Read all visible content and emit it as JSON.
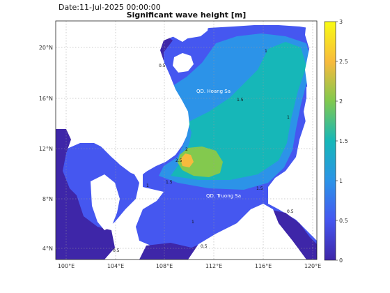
{
  "date_label": "Date:11-Jul-2025 00:00:00",
  "title": "Significant wave height [m]",
  "map": {
    "lon_ticks": [
      "100°E",
      "104°E",
      "108°E",
      "112°E",
      "116°E",
      "120°E"
    ],
    "lat_ticks": [
      "4°N",
      "8°N",
      "12°N",
      "16°N",
      "20°N"
    ],
    "place_labels": [
      "QD. Hoang Sa",
      "QD. Truong Sa"
    ],
    "contour_labels": [
      "0.5",
      "1",
      "1.5",
      "2",
      "2.5"
    ]
  },
  "colorbar": {
    "ticks": [
      "0",
      "0.5",
      "1",
      "1.5",
      "2",
      "2.5",
      "3"
    ],
    "min": 0,
    "max": 3,
    "colors": [
      "#3e26a8",
      "#4557f0",
      "#2c93e8",
      "#16b7b8",
      "#83c94e",
      "#f7ba3d",
      "#f9fb14"
    ]
  }
}
